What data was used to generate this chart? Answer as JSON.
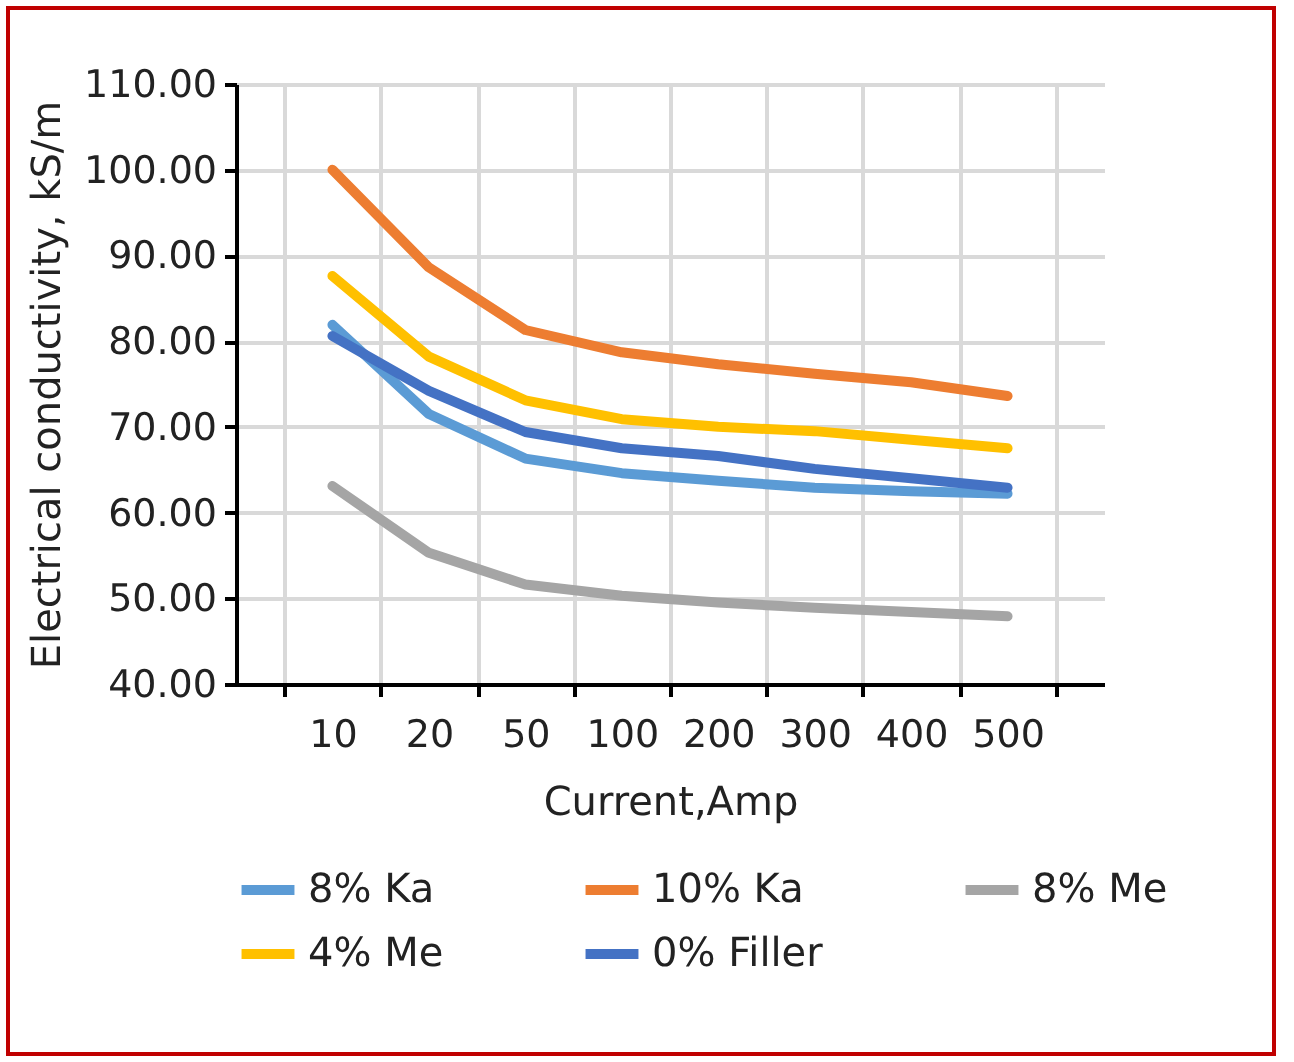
{
  "chart_data": {
    "type": "line",
    "xlabel": "Current,Amp",
    "ylabel": "Electrical conductivity, kS/m",
    "categories": [
      "10",
      "20",
      "50",
      "100",
      "200",
      "300",
      "400",
      "500"
    ],
    "ylim": [
      40,
      110
    ],
    "yticks": [
      {
        "value": 40,
        "label": "40.00"
      },
      {
        "value": 50,
        "label": "50.00"
      },
      {
        "value": 60,
        "label": "60.00"
      },
      {
        "value": 70,
        "label": "70.00"
      },
      {
        "value": 80,
        "label": "80.00"
      },
      {
        "value": 90,
        "label": "90.00"
      },
      {
        "value": 100,
        "label": "100.00"
      },
      {
        "value": 110,
        "label": "110.00"
      }
    ],
    "grid": true,
    "legend": "bottom",
    "marker": "none",
    "line_style": "solid",
    "series": [
      {
        "name": "8% Ka",
        "color": "#5b9bd5",
        "values": [
          81.9,
          71.5,
          66.3,
          64.6,
          63.7,
          62.9,
          62.5,
          62.2
        ]
      },
      {
        "name": "10% Ka",
        "color": "#ed7d31",
        "values": [
          100,
          88.6,
          81.3,
          78.7,
          77.3,
          76.2,
          75.2,
          73.6
        ]
      },
      {
        "name": "8% Me",
        "color": "#a5a5a5",
        "values": [
          63.1,
          55.3,
          51.6,
          50.3,
          49.5,
          48.9,
          48.4,
          47.9
        ]
      },
      {
        "name": "4% Me",
        "color": "#ffc000",
        "values": [
          87.6,
          78.2,
          73.1,
          70.9,
          70.0,
          69.5,
          68.5,
          67.5
        ]
      },
      {
        "name": "0% Filler",
        "color": "#4472c4",
        "values": [
          80.6,
          74.2,
          69.4,
          67.5,
          66.6,
          65.1,
          64.0,
          62.9
        ]
      }
    ]
  }
}
